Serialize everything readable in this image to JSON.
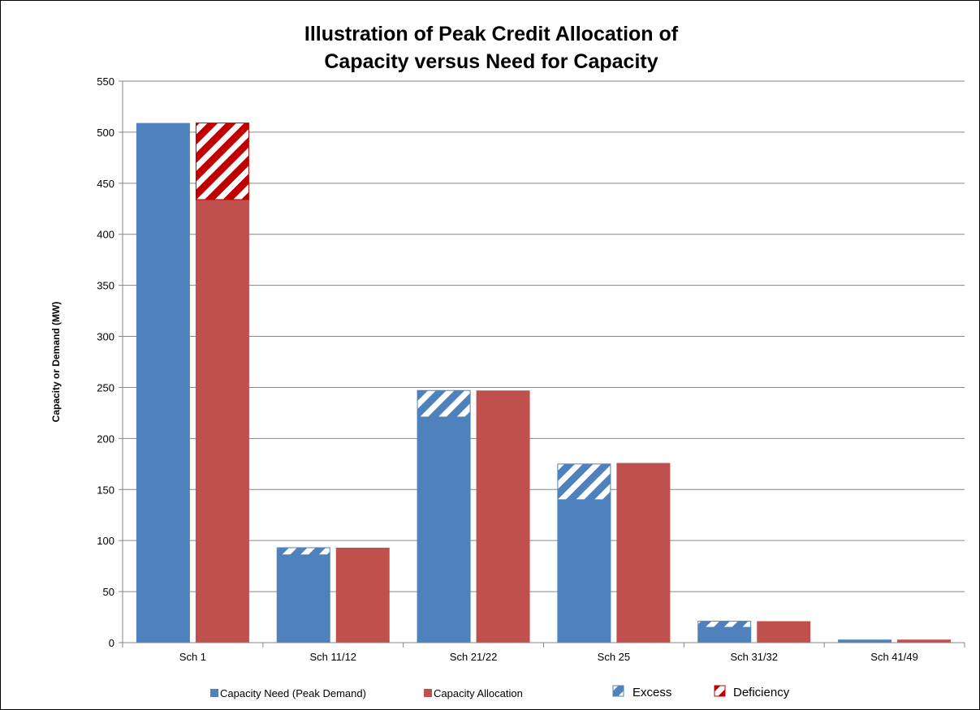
{
  "chart_data": {
    "type": "bar",
    "title_lines": [
      "Illustration of Peak Credit Allocation of",
      "Capacity versus Need for Capacity"
    ],
    "xlabel": "",
    "ylabel": "Capacity or Demand  (MW)",
    "ylim": [
      0,
      550
    ],
    "yticks": [
      0,
      50,
      100,
      150,
      200,
      250,
      300,
      350,
      400,
      450,
      500,
      550
    ],
    "grid": true,
    "legend_position": "bottom",
    "categories": [
      "Sch 1",
      "Sch 11/12",
      "Sch 21/22",
      "Sch 25",
      "Sch 31/32",
      "Sch 41/49"
    ],
    "series": [
      {
        "name": "Capacity Need (Peak Demand)",
        "color": "#4f81bd",
        "values": [
          509,
          86,
          221,
          140,
          15,
          3
        ]
      },
      {
        "name": "Capacity Allocation",
        "color": "#c0504d",
        "values": [
          434,
          93,
          247,
          176,
          21,
          3
        ]
      },
      {
        "name": "Excess",
        "color": "#4f81bd",
        "pattern": "diagonal-hatch",
        "stacked_on": "Capacity Need (Peak Demand)",
        "values": [
          0,
          7,
          26,
          35,
          6,
          0
        ]
      },
      {
        "name": "Deficiency",
        "color": "#c00000",
        "pattern": "diagonal-hatch",
        "stacked_on": "Capacity Allocation",
        "values": [
          75,
          0,
          0,
          0,
          0,
          0
        ]
      }
    ]
  }
}
